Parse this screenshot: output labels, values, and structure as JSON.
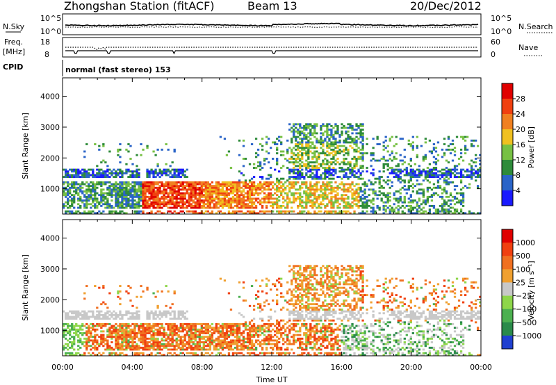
{
  "header": {
    "station": "Zhongshan Station (fitACF)",
    "beam": "Beam 13",
    "date": "20/Dec/2012"
  },
  "panels": {
    "nsky": {
      "left_label": "N.Sky",
      "tick_top": "10^5",
      "tick_bottom": "10^0",
      "right_label": "N.Search",
      "right_tick_top": "10^5",
      "right_tick_bottom": "10^0"
    },
    "freq": {
      "label_line1": "Freq.",
      "label_line2": "[MHz]",
      "tick_top": "18",
      "tick_bottom": "8",
      "right_label": "Nave",
      "right_tick_top": "60",
      "right_tick_bottom": "0"
    },
    "cpid": {
      "label": "CPID",
      "text": "normal (fast stereo) 153"
    }
  },
  "chart_data": [
    {
      "type": "heatmap",
      "name": "power",
      "ylabel": "Slant Range [km]",
      "ylim": [
        180,
        4600
      ],
      "yticks": [
        "1000",
        "2000",
        "3000",
        "4000"
      ],
      "xlabel": "Time UT",
      "xlim": [
        0,
        24
      ],
      "colorbar": {
        "label": "Power [dB]",
        "ticks": [
          "4",
          "8",
          "12",
          "16",
          "20",
          "24",
          "28"
        ],
        "colors": [
          "#1a1aff",
          "#2a64c8",
          "#2e8b3a",
          "#77c043",
          "#f0c020",
          "#f08020",
          "#f04010",
          "#e00000"
        ]
      }
    },
    {
      "type": "heatmap",
      "name": "velocity",
      "ylabel": "Slant Range [km]",
      "ylim": [
        180,
        4600
      ],
      "yticks": [
        "1000",
        "2000",
        "3000",
        "4000"
      ],
      "xlabel": "Time UT",
      "xlim": [
        0,
        24
      ],
      "xticks": [
        "00:00",
        "04:00",
        "08:00",
        "12:00",
        "16:00",
        "20:00",
        "00:00"
      ],
      "colorbar": {
        "label": "Velocity [m s⁻¹]",
        "ticks": [
          "1000",
          "500",
          "100",
          "25",
          "−25",
          "−100",
          "−500",
          "−1000"
        ],
        "colors": [
          "#2040d0",
          "#2a8a4a",
          "#4cb050",
          "#8ed64a",
          "#c8c8c8",
          "#f0a030",
          "#f07020",
          "#f04010",
          "#e00000"
        ]
      }
    }
  ]
}
